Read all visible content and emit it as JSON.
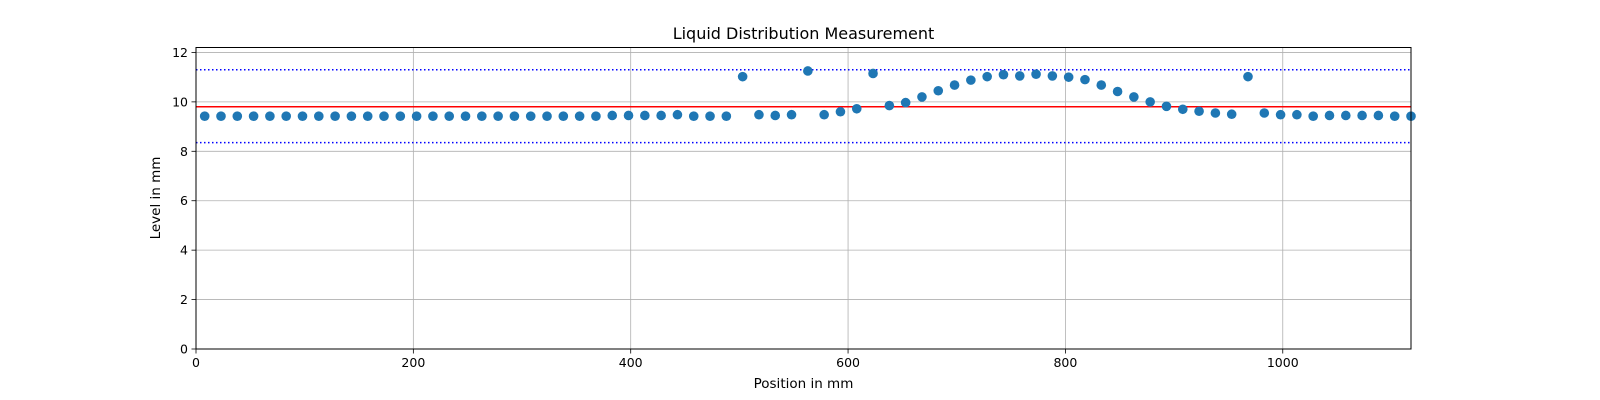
{
  "chart_data": {
    "type": "scatter",
    "title": "Liquid Distribution Measurement",
    "xlabel": "Position in mm",
    "ylabel": "Level in mm",
    "xlim": [
      0,
      1118
    ],
    "ylim": [
      0,
      12.2
    ],
    "xticks": [
      0,
      200,
      400,
      600,
      800,
      1000
    ],
    "yticks": [
      0,
      2,
      4,
      6,
      8,
      10,
      12
    ],
    "grid": true,
    "point_color": "#1f77b4",
    "reference_lines": [
      {
        "y": 9.8,
        "color": "#ff0000",
        "style": "solid"
      },
      {
        "y": 11.3,
        "color": "#0000ff",
        "style": "dotted"
      },
      {
        "y": 8.35,
        "color": "#0000ff",
        "style": "dotted"
      }
    ],
    "x": [
      8,
      23,
      38,
      53,
      68,
      83,
      98,
      113,
      128,
      143,
      158,
      173,
      188,
      203,
      218,
      233,
      248,
      263,
      278,
      293,
      308,
      323,
      338,
      353,
      368,
      383,
      398,
      413,
      428,
      443,
      458,
      473,
      488,
      503,
      518,
      533,
      548,
      563,
      578,
      593,
      608,
      623,
      638,
      653,
      668,
      683,
      698,
      713,
      728,
      743,
      758,
      773,
      788,
      803,
      818,
      833,
      848,
      863,
      878,
      893,
      908,
      923,
      938,
      953,
      968,
      983,
      998,
      1013,
      1028,
      1043,
      1058,
      1073,
      1088,
      1103,
      1118
    ],
    "y": [
      9.42,
      9.42,
      9.42,
      9.42,
      9.42,
      9.42,
      9.42,
      9.42,
      9.42,
      9.42,
      9.42,
      9.42,
      9.42,
      9.42,
      9.42,
      9.42,
      9.42,
      9.42,
      9.42,
      9.42,
      9.42,
      9.42,
      9.42,
      9.42,
      9.42,
      9.45,
      9.45,
      9.45,
      9.45,
      9.48,
      9.42,
      9.42,
      9.42,
      11.02,
      9.48,
      9.45,
      9.48,
      11.25,
      9.48,
      9.6,
      9.72,
      11.15,
      9.85,
      9.97,
      10.2,
      10.45,
      10.68,
      10.88,
      11.02,
      11.1,
      11.05,
      11.12,
      11.05,
      11.0,
      10.9,
      10.68,
      10.42,
      10.2,
      10.0,
      9.82,
      9.7,
      9.62,
      9.55,
      9.5,
      11.02,
      9.55,
      9.48,
      9.48,
      9.42,
      9.45,
      9.45,
      9.45,
      9.45,
      9.42,
      9.42
    ]
  }
}
